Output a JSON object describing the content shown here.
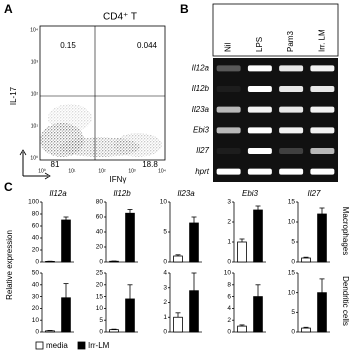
{
  "panel_a": {
    "letter": "A",
    "title": "CD4⁺ T",
    "quadrants": [
      "0.15",
      "0.044",
      "81",
      "18.8"
    ],
    "y_label": "IL-17",
    "x_label": "IFNγ",
    "x_tick_labels": [
      "10⁰",
      "10¹",
      "10²",
      "10³",
      "10⁴"
    ],
    "y_tick_labels": [
      "10⁰",
      "10¹",
      "10²",
      "10³",
      "10⁴"
    ]
  },
  "panel_b": {
    "letter": "B",
    "lanes": [
      "Nil",
      "LPS",
      "Pam3",
      "Irr. LM"
    ],
    "genes": [
      "Il12a",
      "Il12b",
      "Il23a",
      "Ebi3",
      "Il27",
      "hprt"
    ]
  },
  "panel_c": {
    "letter": "C",
    "y_label": "Relative expression",
    "row_labels": [
      "Macrophages",
      "Dendritic cells"
    ],
    "legend": [
      {
        "name": "media",
        "color": "#ffffff"
      },
      {
        "name": "Irr-LM",
        "color": "#000000"
      }
    ]
  },
  "chart_data": [
    {
      "type": "bar",
      "title": "Il12a",
      "categories": [
        null,
        null
      ],
      "values": [
        1,
        70
      ],
      "errors": [
        0.3,
        5
      ],
      "ylim": [
        0,
        100
      ],
      "yticks": [
        0,
        20,
        40,
        60,
        80,
        100
      ]
    },
    {
      "type": "bar",
      "title": "Il12b",
      "categories": [
        null,
        null
      ],
      "values": [
        1,
        65
      ],
      "errors": [
        0.3,
        5
      ],
      "ylim": [
        0,
        80
      ],
      "yticks": [
        0,
        20,
        40,
        60,
        80
      ]
    },
    {
      "type": "bar",
      "title": "Il23a",
      "categories": [
        null,
        null
      ],
      "values": [
        1,
        6.5
      ],
      "errors": [
        0.2,
        1
      ],
      "ylim": [
        0,
        10
      ],
      "yticks": [
        0,
        5,
        10
      ]
    },
    {
      "type": "bar",
      "title": "Ebi3",
      "categories": [
        null,
        null
      ],
      "values": [
        1,
        2.6
      ],
      "errors": [
        0.15,
        0.2
      ],
      "ylim": [
        0,
        3
      ],
      "yticks": [
        0,
        1,
        2,
        3
      ]
    },
    {
      "type": "bar",
      "title": "Il27",
      "categories": [
        null,
        null
      ],
      "values": [
        1,
        12
      ],
      "errors": [
        0.2,
        1.5
      ],
      "ylim": [
        0,
        15
      ],
      "yticks": [
        0,
        5,
        10,
        15
      ]
    },
    {
      "type": "bar",
      "categories": [
        null,
        null
      ],
      "values": [
        1,
        29
      ],
      "errors": [
        0.3,
        12
      ],
      "ylim": [
        0,
        50
      ],
      "yticks": [
        0,
        10,
        20,
        30,
        40,
        50
      ]
    },
    {
      "type": "bar",
      "categories": [
        null,
        null
      ],
      "values": [
        1,
        14
      ],
      "errors": [
        0.2,
        6
      ],
      "ylim": [
        0,
        25
      ],
      "yticks": [
        0,
        5,
        10,
        15,
        20,
        25
      ]
    },
    {
      "type": "bar",
      "categories": [
        null,
        null
      ],
      "values": [
        1,
        2.8
      ],
      "errors": [
        0.3,
        1.2
      ],
      "ylim": [
        0,
        4
      ],
      "yticks": [
        0,
        1,
        2,
        3,
        4
      ]
    },
    {
      "type": "bar",
      "categories": [
        null,
        null
      ],
      "values": [
        1,
        6
      ],
      "errors": [
        0.2,
        2
      ],
      "ylim": [
        0,
        10
      ],
      "yticks": [
        0,
        2,
        4,
        6,
        8,
        10
      ]
    },
    {
      "type": "bar",
      "categories": [
        null,
        null
      ],
      "values": [
        1,
        10
      ],
      "errors": [
        0.2,
        3.5
      ],
      "ylim": [
        0,
        15
      ],
      "yticks": [
        0,
        5,
        10,
        15
      ]
    }
  ]
}
